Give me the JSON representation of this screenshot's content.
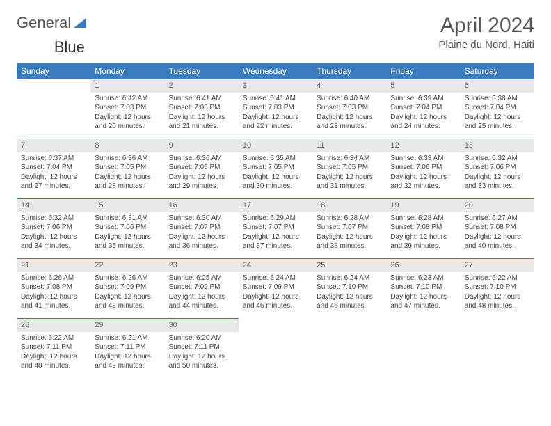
{
  "logo": {
    "part1": "General",
    "part2": "Blue"
  },
  "title": "April 2024",
  "location": "Plaine du Nord, Haiti",
  "colors": {
    "header_bg": "#3a7bbf",
    "daynum_bg": "#e8e8e8",
    "daynum_border": "#3a7bbf",
    "text": "#444"
  },
  "weekdays": [
    "Sunday",
    "Monday",
    "Tuesday",
    "Wednesday",
    "Thursday",
    "Friday",
    "Saturday"
  ],
  "weeks": [
    [
      null,
      {
        "n": "1",
        "sr": "6:42 AM",
        "ss": "7:03 PM",
        "dl": "12 hours and 20 minutes."
      },
      {
        "n": "2",
        "sr": "6:41 AM",
        "ss": "7:03 PM",
        "dl": "12 hours and 21 minutes."
      },
      {
        "n": "3",
        "sr": "6:41 AM",
        "ss": "7:03 PM",
        "dl": "12 hours and 22 minutes."
      },
      {
        "n": "4",
        "sr": "6:40 AM",
        "ss": "7:03 PM",
        "dl": "12 hours and 23 minutes."
      },
      {
        "n": "5",
        "sr": "6:39 AM",
        "ss": "7:04 PM",
        "dl": "12 hours and 24 minutes."
      },
      {
        "n": "6",
        "sr": "6:38 AM",
        "ss": "7:04 PM",
        "dl": "12 hours and 25 minutes."
      }
    ],
    [
      {
        "n": "7",
        "sr": "6:37 AM",
        "ss": "7:04 PM",
        "dl": "12 hours and 27 minutes."
      },
      {
        "n": "8",
        "sr": "6:36 AM",
        "ss": "7:05 PM",
        "dl": "12 hours and 28 minutes."
      },
      {
        "n": "9",
        "sr": "6:36 AM",
        "ss": "7:05 PM",
        "dl": "12 hours and 29 minutes."
      },
      {
        "n": "10",
        "sr": "6:35 AM",
        "ss": "7:05 PM",
        "dl": "12 hours and 30 minutes."
      },
      {
        "n": "11",
        "sr": "6:34 AM",
        "ss": "7:05 PM",
        "dl": "12 hours and 31 minutes."
      },
      {
        "n": "12",
        "sr": "6:33 AM",
        "ss": "7:06 PM",
        "dl": "12 hours and 32 minutes."
      },
      {
        "n": "13",
        "sr": "6:32 AM",
        "ss": "7:06 PM",
        "dl": "12 hours and 33 minutes."
      }
    ],
    [
      {
        "n": "14",
        "sr": "6:32 AM",
        "ss": "7:06 PM",
        "dl": "12 hours and 34 minutes."
      },
      {
        "n": "15",
        "sr": "6:31 AM",
        "ss": "7:06 PM",
        "dl": "12 hours and 35 minutes."
      },
      {
        "n": "16",
        "sr": "6:30 AM",
        "ss": "7:07 PM",
        "dl": "12 hours and 36 minutes."
      },
      {
        "n": "17",
        "sr": "6:29 AM",
        "ss": "7:07 PM",
        "dl": "12 hours and 37 minutes."
      },
      {
        "n": "18",
        "sr": "6:28 AM",
        "ss": "7:07 PM",
        "dl": "12 hours and 38 minutes."
      },
      {
        "n": "19",
        "sr": "6:28 AM",
        "ss": "7:08 PM",
        "dl": "12 hours and 39 minutes."
      },
      {
        "n": "20",
        "sr": "6:27 AM",
        "ss": "7:08 PM",
        "dl": "12 hours and 40 minutes."
      }
    ],
    [
      {
        "n": "21",
        "sr": "6:26 AM",
        "ss": "7:08 PM",
        "dl": "12 hours and 41 minutes."
      },
      {
        "n": "22",
        "sr": "6:26 AM",
        "ss": "7:09 PM",
        "dl": "12 hours and 43 minutes."
      },
      {
        "n": "23",
        "sr": "6:25 AM",
        "ss": "7:09 PM",
        "dl": "12 hours and 44 minutes."
      },
      {
        "n": "24",
        "sr": "6:24 AM",
        "ss": "7:09 PM",
        "dl": "12 hours and 45 minutes."
      },
      {
        "n": "25",
        "sr": "6:24 AM",
        "ss": "7:10 PM",
        "dl": "12 hours and 46 minutes."
      },
      {
        "n": "26",
        "sr": "6:23 AM",
        "ss": "7:10 PM",
        "dl": "12 hours and 47 minutes."
      },
      {
        "n": "27",
        "sr": "6:22 AM",
        "ss": "7:10 PM",
        "dl": "12 hours and 48 minutes."
      }
    ],
    [
      {
        "n": "28",
        "sr": "6:22 AM",
        "ss": "7:11 PM",
        "dl": "12 hours and 48 minutes."
      },
      {
        "n": "29",
        "sr": "6:21 AM",
        "ss": "7:11 PM",
        "dl": "12 hours and 49 minutes."
      },
      {
        "n": "30",
        "sr": "6:20 AM",
        "ss": "7:11 PM",
        "dl": "12 hours and 50 minutes."
      },
      null,
      null,
      null,
      null
    ]
  ],
  "labels": {
    "sunrise": "Sunrise:",
    "sunset": "Sunset:",
    "daylight": "Daylight:"
  }
}
